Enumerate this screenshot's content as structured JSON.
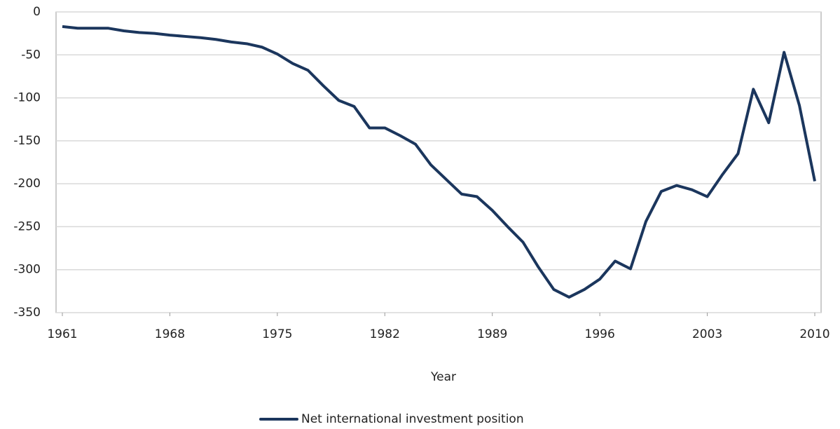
{
  "chart_data": {
    "type": "line",
    "x_label": "Year",
    "x": [
      1961,
      1962,
      1963,
      1964,
      1965,
      1966,
      1967,
      1968,
      1969,
      1970,
      1971,
      1972,
      1973,
      1974,
      1975,
      1976,
      1977,
      1978,
      1979,
      1980,
      1981,
      1982,
      1983,
      1984,
      1985,
      1986,
      1987,
      1988,
      1989,
      1990,
      1991,
      1992,
      1993,
      1994,
      1995,
      1996,
      1997,
      1998,
      1999,
      2000,
      2001,
      2002,
      2003,
      2004,
      2005,
      2006,
      2007,
      2008,
      2009,
      2010
    ],
    "series": [
      {
        "name": "Net international investment position",
        "color": "#1b365d",
        "values": [
          -17,
          -19,
          -19,
          -19,
          -22,
          -24,
          -25,
          -27,
          -28.5,
          -30,
          -32,
          -35,
          -37,
          -41,
          -49,
          -60,
          -68,
          -86,
          -103,
          -110,
          -135,
          -135,
          -144,
          -154,
          -178,
          -195,
          -212,
          -215,
          -231,
          -250,
          -268,
          -297,
          -323,
          -332,
          -323,
          -311,
          -290,
          -299,
          -244,
          -209,
          -202,
          -207,
          -215,
          -189,
          -165,
          -90,
          -129,
          -47,
          -109,
          -197
        ]
      }
    ],
    "xlim": [
      1961,
      2010
    ],
    "xticks": [
      1961,
      1968,
      1975,
      1982,
      1989,
      1996,
      2003,
      2010
    ],
    "ylim": [
      -350,
      0
    ],
    "yticks": [
      0,
      -50,
      -100,
      -150,
      -200,
      -250,
      -300,
      -350
    ],
    "grid": true,
    "legend": "bottom"
  }
}
